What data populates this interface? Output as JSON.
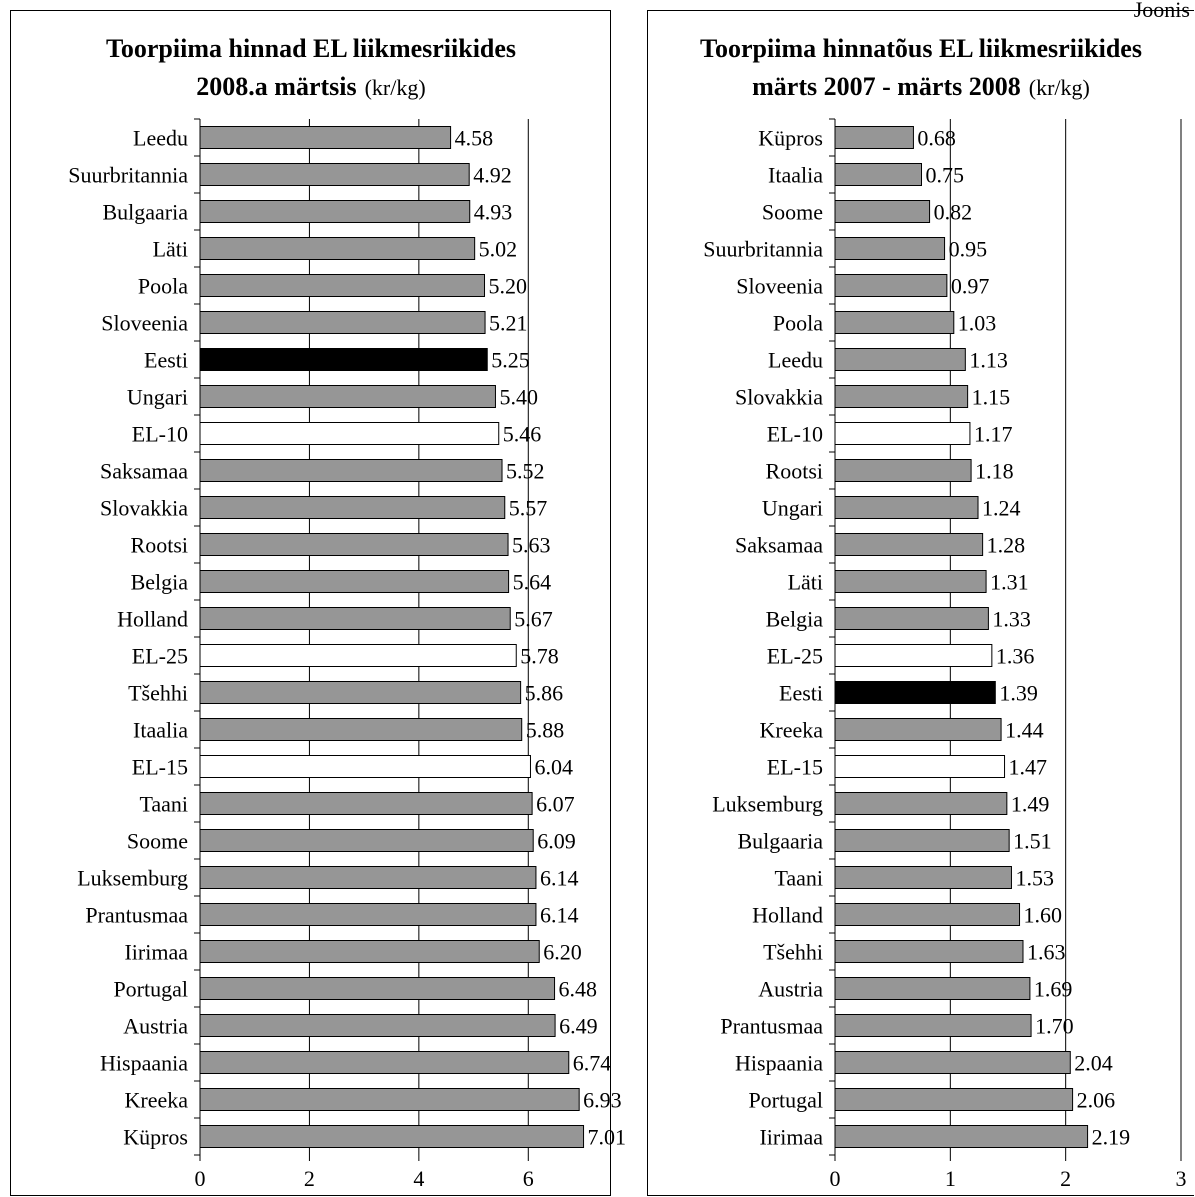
{
  "page": {
    "corner_label": "Joonis"
  },
  "charts": [
    {
      "id": "left",
      "title_line1": "Toorpiima hinnad EL liikmesriikides",
      "title_line2_bold": "2008.a märtsis",
      "title_line2_unit": "(kr/kg)"
    },
    {
      "id": "right",
      "title_line1": "Toorpiima hinnatõus EL liikmesriikides",
      "title_line2_bold": "märts 2007 - märts 2008",
      "title_line2_unit": "(kr/kg)"
    }
  ],
  "colors": {
    "country": "#969696",
    "eu_aggregate": "#ffffff",
    "estonia": "#000000"
  },
  "chart_data": [
    {
      "type": "bar",
      "orientation": "horizontal",
      "title": "Toorpiima hinnad EL liikmesriikides 2008.a märtsis (kr/kg)",
      "categories": [
        "Leedu",
        "Suurbritannia",
        "Bulgaaria",
        "Läti",
        "Poola",
        "Sloveenia",
        "Eesti",
        "Ungari",
        "EL-10",
        "Saksamaa",
        "Slovakkia",
        "Rootsi",
        "Belgia",
        "Holland",
        "EL-25",
        "Tšehhi",
        "Itaalia",
        "EL-15",
        "Taani",
        "Soome",
        "Luksemburg",
        "Prantusmaa",
        "Iirimaa",
        "Portugal",
        "Austria",
        "Hispaania",
        "Kreeka",
        "Küpros"
      ],
      "values": [
        4.58,
        4.92,
        4.93,
        5.02,
        5.2,
        5.21,
        5.25,
        5.4,
        5.46,
        5.52,
        5.57,
        5.63,
        5.64,
        5.67,
        5.78,
        5.86,
        5.88,
        6.04,
        6.07,
        6.09,
        6.14,
        6.14,
        6.2,
        6.48,
        6.49,
        6.74,
        6.93,
        7.01
      ],
      "value_labels": [
        "4.58",
        "4.92",
        "4.93",
        "5.02",
        "5.20",
        "5.21",
        "5.25",
        "5.40",
        "5.46",
        "5.52",
        "5.57",
        "5.63",
        "5.64",
        "5.67",
        "5.78",
        "5.86",
        "5.88",
        "6.04",
        "6.07",
        "6.09",
        "6.14",
        "6.14",
        "6.20",
        "6.48",
        "6.49",
        "6.74",
        "6.93",
        "7.01"
      ],
      "kinds": [
        "c",
        "c",
        "c",
        "c",
        "c",
        "c",
        "ee",
        "c",
        "eu",
        "c",
        "c",
        "c",
        "c",
        "c",
        "eu",
        "c",
        "c",
        "eu",
        "c",
        "c",
        "c",
        "c",
        "c",
        "c",
        "c",
        "c",
        "c",
        "c"
      ],
      "xlim": [
        0,
        7
      ],
      "xticks": [
        0,
        2,
        4,
        6
      ],
      "grid": "vertical"
    },
    {
      "type": "bar",
      "orientation": "horizontal",
      "title": "Toorpiima hinnatõus EL liikmesriikides märts 2007 - märts 2008 (kr/kg)",
      "categories": [
        "Küpros",
        "Itaalia",
        "Soome",
        "Suurbritannia",
        "Sloveenia",
        "Poola",
        "Leedu",
        "Slovakkia",
        "EL-10",
        "Rootsi",
        "Ungari",
        "Saksamaa",
        "Läti",
        "Belgia",
        "EL-25",
        "Eesti",
        "Kreeka",
        "EL-15",
        "Luksemburg",
        "Bulgaaria",
        "Taani",
        "Holland",
        "Tšehhi",
        "Austria",
        "Prantusmaa",
        "Hispaania",
        "Portugal",
        "Iirimaa"
      ],
      "values": [
        0.68,
        0.75,
        0.82,
        0.95,
        0.97,
        1.03,
        1.13,
        1.15,
        1.17,
        1.18,
        1.24,
        1.28,
        1.31,
        1.33,
        1.36,
        1.39,
        1.44,
        1.47,
        1.49,
        1.51,
        1.53,
        1.6,
        1.63,
        1.69,
        1.7,
        2.04,
        2.06,
        2.19
      ],
      "value_labels": [
        "0.68",
        "0.75",
        "0.82",
        "0.95",
        "0.97",
        "1.03",
        "1.13",
        "1.15",
        "1.17",
        "1.18",
        "1.24",
        "1.28",
        "1.31",
        "1.33",
        "1.36",
        "1.39",
        "1.44",
        "1.47",
        "1.49",
        "1.51",
        "1.53",
        "1.60",
        "1.63",
        "1.69",
        "1.70",
        "2.04",
        "2.06",
        "2.19"
      ],
      "kinds": [
        "c",
        "c",
        "c",
        "c",
        "c",
        "c",
        "c",
        "c",
        "eu",
        "c",
        "c",
        "c",
        "c",
        "c",
        "eu",
        "ee",
        "c",
        "eu",
        "c",
        "c",
        "c",
        "c",
        "c",
        "c",
        "c",
        "c",
        "c",
        "c"
      ],
      "xlim": [
        0,
        3
      ],
      "xticks": [
        0,
        1,
        2,
        3
      ],
      "grid": "vertical"
    }
  ]
}
